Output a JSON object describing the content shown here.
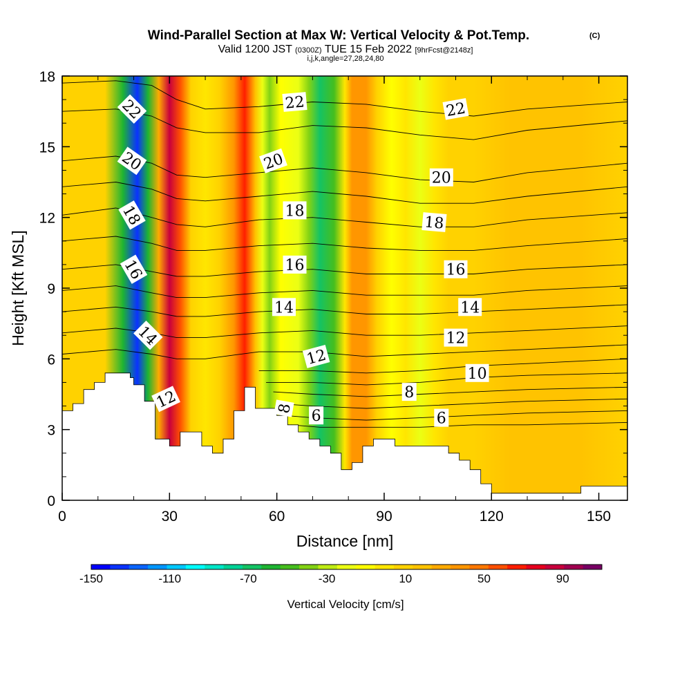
{
  "chart_data": {
    "type": "heatmap",
    "title": "Wind-Parallel Section at Max W: Vertical Velocity & Pot.Temp.",
    "title_mark": "(C)",
    "subtitle_parts": {
      "valid": "Valid 1200 JST",
      "utc": "(0300Z)",
      "date": "TUE 15 Feb 2022",
      "forecast": "[9hrFcst@2148z]"
    },
    "subtitle2": "i,j,k,angle=27,28,24,80",
    "xlabel": "Distance [nm]",
    "ylabel": "Height [Kft MSL]",
    "xlim": [
      0,
      158
    ],
    "ylim": [
      0,
      18
    ],
    "x_ticks": [
      "0",
      "30",
      "60",
      "90",
      "120",
      "150"
    ],
    "x_tick_values": [
      0,
      30,
      60,
      90,
      120,
      150
    ],
    "y_ticks": [
      "0",
      "3",
      "6",
      "9",
      "12",
      "15",
      "18"
    ],
    "y_tick_values": [
      0,
      3,
      6,
      9,
      12,
      15,
      18
    ],
    "grid": false,
    "colorbar": {
      "label": "Vertical Velocity [cm/s]",
      "range": [
        -150,
        110
      ],
      "step": 10,
      "tick_labels": [
        "-150",
        "-110",
        "-70",
        "-30",
        "10",
        "50",
        "90"
      ],
      "tick_values": [
        -150,
        -110,
        -70,
        -30,
        10,
        50,
        90
      ],
      "colors": [
        "#0000ff",
        "#0a32ff",
        "#0a64ff",
        "#0096ff",
        "#00c8ff",
        "#00ffff",
        "#00e6c8",
        "#00d296",
        "#14c364",
        "#1eb432",
        "#46be1e",
        "#82d214",
        "#beeb14",
        "#ebff14",
        "#ffff00",
        "#ffe600",
        "#ffd200",
        "#ffc300",
        "#ffaa00",
        "#ff9600",
        "#ff7800",
        "#ff5000",
        "#ff1e00",
        "#e6001e",
        "#c8003c",
        "#a00050",
        "#780064"
      ]
    },
    "vertical_velocity_bands": [
      {
        "x": 0,
        "w": 10
      },
      {
        "x": 4,
        "w": 15
      },
      {
        "x": 12,
        "w": 18
      },
      {
        "x": 17,
        "w": -60
      },
      {
        "x": 21,
        "w": -140
      },
      {
        "x": 24,
        "w": -60
      },
      {
        "x": 27,
        "w": 30
      },
      {
        "x": 30,
        "w": 95
      },
      {
        "x": 33,
        "w": 60
      },
      {
        "x": 36,
        "w": 15
      },
      {
        "x": 40,
        "w": 0
      },
      {
        "x": 44,
        "w": 10
      },
      {
        "x": 48,
        "w": 45
      },
      {
        "x": 51,
        "w": 75
      },
      {
        "x": 54,
        "w": 20
      },
      {
        "x": 56,
        "w": -20
      },
      {
        "x": 58,
        "w": -40
      },
      {
        "x": 61,
        "w": -10
      },
      {
        "x": 66,
        "w": -20
      },
      {
        "x": 69,
        "w": -40
      },
      {
        "x": 72,
        "w": -70
      },
      {
        "x": 76,
        "w": -50
      },
      {
        "x": 79,
        "w": 0
      },
      {
        "x": 81,
        "w": 40
      },
      {
        "x": 85,
        "w": 40
      },
      {
        "x": 88,
        "w": 10
      },
      {
        "x": 92,
        "w": -10
      },
      {
        "x": 96,
        "w": 0
      },
      {
        "x": 100,
        "w": -15
      },
      {
        "x": 104,
        "w": 0
      },
      {
        "x": 108,
        "w": 15
      },
      {
        "x": 115,
        "w": 15
      },
      {
        "x": 125,
        "w": 20
      },
      {
        "x": 135,
        "w": 25
      },
      {
        "x": 145,
        "w": 20
      },
      {
        "x": 158,
        "w": 15
      }
    ],
    "terrain": {
      "x": [
        0,
        3,
        3,
        6,
        6,
        9,
        9,
        12,
        12,
        19,
        19,
        20,
        20,
        23,
        23,
        26,
        26,
        30,
        30,
        33,
        33,
        36,
        36,
        39,
        39,
        42,
        42,
        45,
        45,
        48,
        48,
        51,
        51,
        54,
        54,
        60,
        60,
        63,
        63,
        66,
        66,
        69,
        69,
        72,
        72,
        75,
        75,
        78,
        78,
        81,
        81,
        84,
        84,
        87,
        87,
        93,
        93,
        96,
        96,
        99,
        99,
        108,
        108,
        111,
        111,
        114,
        114,
        117,
        117,
        120,
        120,
        145,
        145,
        158
      ],
      "y": [
        3.8,
        3.8,
        4.1,
        4.1,
        4.7,
        4.7,
        5.0,
        5.0,
        5.4,
        5.4,
        5.2,
        5.2,
        4.9,
        4.9,
        4.2,
        4.2,
        2.6,
        2.6,
        2.3,
        2.3,
        2.9,
        2.9,
        2.9,
        2.9,
        2.3,
        2.3,
        2.0,
        2.0,
        2.6,
        2.6,
        3.8,
        3.8,
        4.8,
        4.8,
        3.9,
        3.9,
        3.6,
        3.6,
        3.2,
        3.2,
        2.9,
        2.9,
        2.6,
        2.6,
        2.3,
        2.3,
        2.0,
        2.0,
        1.3,
        1.3,
        1.6,
        1.6,
        2.3,
        2.3,
        2.6,
        2.6,
        2.3,
        2.3,
        2.3,
        2.3,
        2.3,
        2.3,
        2.0,
        2.0,
        1.7,
        1.7,
        1.3,
        1.3,
        0.7,
        0.7,
        0.3,
        0.3,
        0.6,
        0.6
      ]
    },
    "theta_contours": [
      {
        "level": 22,
        "x": [
          0,
          15,
          25,
          32,
          40,
          55,
          70,
          85,
          100,
          115,
          130,
          158
        ],
        "y": [
          17.7,
          17.8,
          17.6,
          17.0,
          16.6,
          16.7,
          16.9,
          16.8,
          16.5,
          16.3,
          16.6,
          16.9
        ]
      },
      {
        "level": 21,
        "x": [
          0,
          15,
          25,
          32,
          40,
          55,
          70,
          85,
          100,
          115,
          130,
          158
        ],
        "y": [
          16.5,
          16.6,
          16.3,
          15.8,
          15.6,
          15.6,
          15.9,
          15.8,
          15.5,
          15.3,
          15.7,
          16.1
        ]
      },
      {
        "level": 20,
        "x": [
          0,
          15,
          25,
          32,
          40,
          55,
          70,
          85,
          100,
          115,
          130,
          158
        ],
        "y": [
          14.4,
          14.6,
          14.3,
          13.8,
          13.7,
          13.9,
          14.1,
          13.9,
          13.6,
          13.5,
          13.9,
          14.3
        ]
      },
      {
        "level": 19,
        "x": [
          0,
          15,
          25,
          32,
          40,
          55,
          70,
          85,
          100,
          115,
          130,
          158
        ],
        "y": [
          13.3,
          13.5,
          13.2,
          12.8,
          12.7,
          12.9,
          13.1,
          12.9,
          12.6,
          12.6,
          12.9,
          13.3
        ]
      },
      {
        "level": 18,
        "x": [
          0,
          15,
          25,
          32,
          40,
          55,
          70,
          85,
          100,
          115,
          130,
          158
        ],
        "y": [
          12.1,
          12.4,
          12.0,
          11.7,
          11.6,
          11.9,
          12.0,
          11.8,
          11.6,
          11.6,
          11.9,
          12.2
        ]
      },
      {
        "level": 17,
        "x": [
          0,
          15,
          25,
          32,
          40,
          55,
          70,
          85,
          100,
          115,
          130,
          158
        ],
        "y": [
          11.0,
          11.2,
          10.9,
          10.6,
          10.6,
          10.8,
          10.9,
          10.7,
          10.6,
          10.6,
          10.8,
          11.1
        ]
      },
      {
        "level": 16,
        "x": [
          0,
          15,
          25,
          32,
          40,
          55,
          70,
          85,
          100,
          115,
          130,
          158
        ],
        "y": [
          9.8,
          10.0,
          9.7,
          9.5,
          9.5,
          9.7,
          9.8,
          9.6,
          9.6,
          9.6,
          9.8,
          10.0
        ]
      },
      {
        "level": 15,
        "x": [
          0,
          15,
          25,
          32,
          40,
          55,
          70,
          85,
          100,
          115,
          130,
          158
        ],
        "y": [
          8.9,
          9.1,
          8.8,
          8.6,
          8.6,
          8.8,
          8.9,
          8.7,
          8.7,
          8.7,
          8.9,
          9.1
        ]
      },
      {
        "level": 14,
        "x": [
          0,
          15,
          25,
          32,
          40,
          55,
          70,
          85,
          100,
          115,
          130,
          158
        ],
        "y": [
          8.0,
          8.2,
          8.0,
          7.8,
          7.8,
          8.0,
          8.1,
          7.9,
          7.9,
          8.0,
          8.1,
          8.3
        ]
      },
      {
        "level": 13,
        "x": [
          0,
          15,
          25,
          32,
          40,
          55,
          70,
          85,
          100,
          115,
          130,
          158
        ],
        "y": [
          7.1,
          7.3,
          7.1,
          6.9,
          6.9,
          7.1,
          7.2,
          7.0,
          7.0,
          7.1,
          7.2,
          7.4
        ]
      },
      {
        "level": 12,
        "x": [
          0,
          15,
          25,
          32,
          40,
          55,
          70,
          85,
          100,
          115,
          130,
          158
        ],
        "y": [
          6.2,
          6.4,
          6.2,
          6.0,
          6.0,
          6.3,
          6.3,
          6.1,
          6.2,
          6.3,
          6.4,
          6.6
        ]
      },
      {
        "level": 11,
        "x": [
          55,
          70,
          85,
          100,
          115,
          130,
          158
        ],
        "y": [
          5.5,
          5.5,
          5.4,
          5.5,
          5.7,
          5.8,
          6.0
        ]
      },
      {
        "level": 10,
        "x": [
          57,
          70,
          85,
          100,
          115,
          130,
          158
        ],
        "y": [
          5.0,
          5.0,
          4.9,
          5.0,
          5.2,
          5.3,
          5.4
        ]
      },
      {
        "level": 9,
        "x": [
          59,
          70,
          85,
          100,
          115,
          130,
          158
        ],
        "y": [
          4.6,
          4.5,
          4.4,
          4.5,
          4.6,
          4.7,
          4.8
        ]
      },
      {
        "level": 8,
        "x": [
          60,
          70,
          85,
          100,
          115,
          130,
          158
        ],
        "y": [
          4.1,
          4.0,
          3.9,
          4.0,
          4.1,
          4.2,
          4.3
        ]
      },
      {
        "level": 7,
        "x": [
          62,
          70,
          85,
          100,
          115,
          130,
          158
        ],
        "y": [
          3.6,
          3.5,
          3.4,
          3.5,
          3.6,
          3.7,
          3.8
        ]
      },
      {
        "level": 6,
        "x": [
          64,
          72,
          85,
          100,
          115,
          130,
          158
        ],
        "y": [
          3.2,
          3.1,
          3.1,
          3.1,
          3.2,
          3.2,
          3.3
        ]
      }
    ],
    "contour_labels": [
      {
        "text": "22",
        "x": 19.5,
        "y": 16.6,
        "angle": 45
      },
      {
        "text": "20",
        "x": 19.5,
        "y": 14.4,
        "angle": 35
      },
      {
        "text": "18",
        "x": 19.5,
        "y": 12.1,
        "angle": 60
      },
      {
        "text": "16",
        "x": 20,
        "y": 9.8,
        "angle": 60
      },
      {
        "text": "14",
        "x": 24,
        "y": 7.0,
        "angle": 45
      },
      {
        "text": "12",
        "x": 29,
        "y": 4.3,
        "angle": -25
      },
      {
        "text": "22",
        "x": 65,
        "y": 16.9,
        "angle": -5
      },
      {
        "text": "20",
        "x": 59,
        "y": 14.4,
        "angle": -20
      },
      {
        "text": "18",
        "x": 65,
        "y": 12.3,
        "angle": 0
      },
      {
        "text": "16",
        "x": 65,
        "y": 10.0,
        "angle": 0
      },
      {
        "text": "14",
        "x": 62,
        "y": 8.2,
        "angle": 0
      },
      {
        "text": "12",
        "x": 71,
        "y": 6.1,
        "angle": -15
      },
      {
        "text": "8",
        "x": 62,
        "y": 3.9,
        "angle": -80
      },
      {
        "text": "6",
        "x": 71,
        "y": 3.6,
        "angle": 0
      },
      {
        "text": "22",
        "x": 110,
        "y": 16.6,
        "angle": -10
      },
      {
        "text": "20",
        "x": 106,
        "y": 13.7,
        "angle": 0
      },
      {
        "text": "18",
        "x": 104,
        "y": 11.8,
        "angle": 5
      },
      {
        "text": "16",
        "x": 110,
        "y": 9.8,
        "angle": 0
      },
      {
        "text": "14",
        "x": 114,
        "y": 8.2,
        "angle": 0
      },
      {
        "text": "12",
        "x": 110,
        "y": 6.9,
        "angle": 0
      },
      {
        "text": "10",
        "x": 116,
        "y": 5.4,
        "angle": 0
      },
      {
        "text": "8",
        "x": 97,
        "y": 4.6,
        "angle": 0
      },
      {
        "text": "6",
        "x": 106,
        "y": 3.5,
        "angle": 0
      }
    ]
  }
}
